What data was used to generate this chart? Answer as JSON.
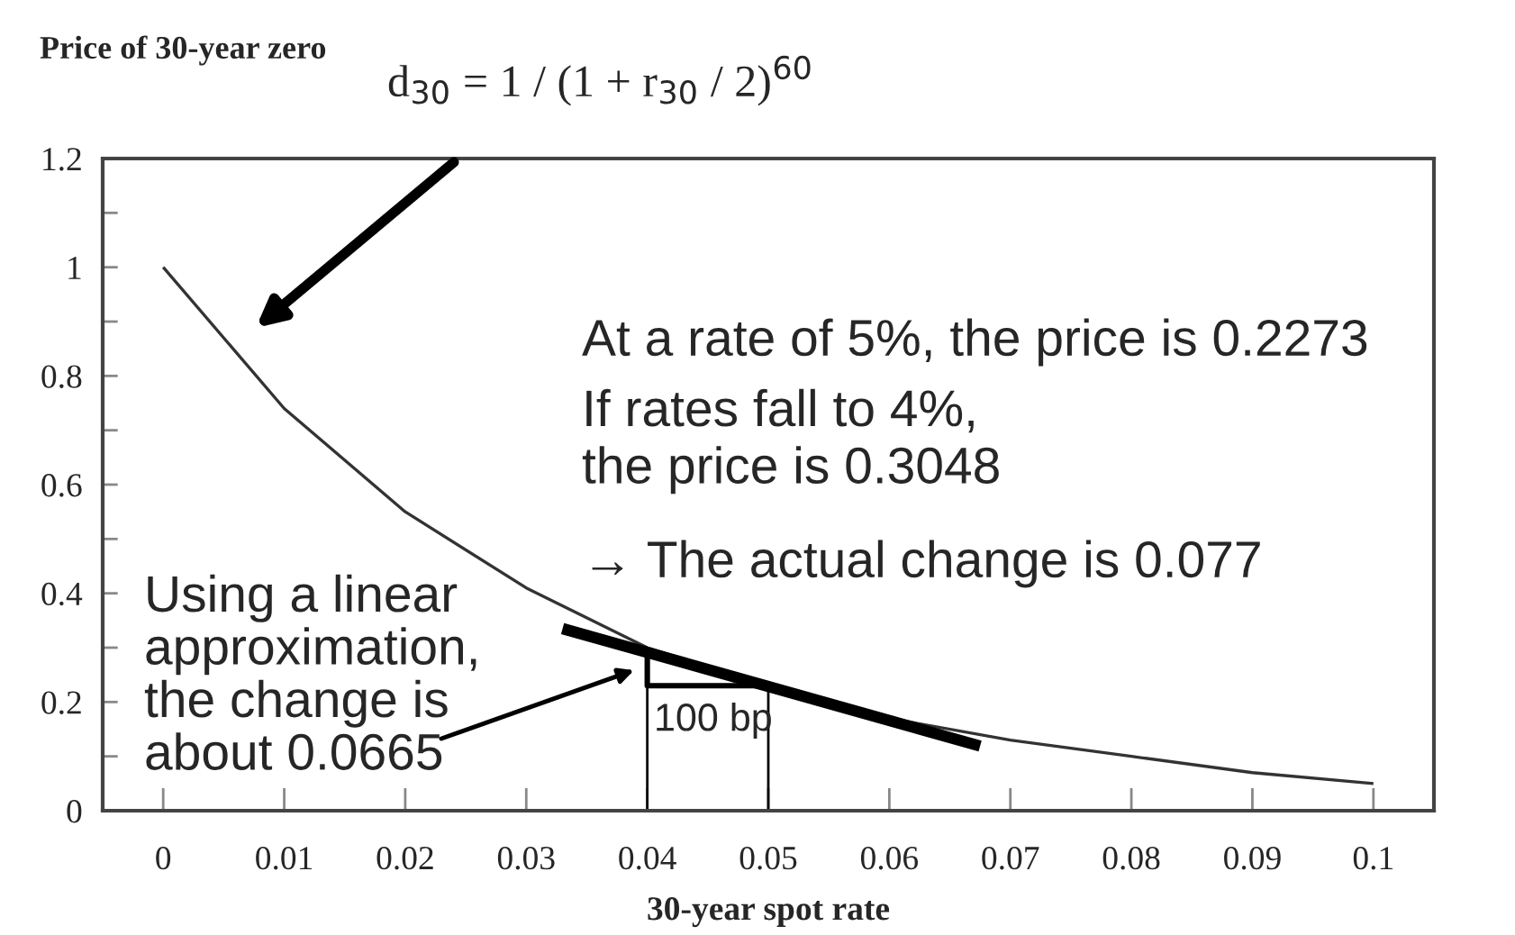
{
  "chart_data": {
    "type": "line",
    "xlabel": "30-year spot rate",
    "ylabel": "Price of 30-year zero",
    "series": [
      {
        "color": "#333333",
        "x": [
          0,
          0.01,
          0.02,
          0.03,
          0.04,
          0.05,
          0.06,
          0.07,
          0.08,
          0.09,
          0.1
        ],
        "values": [
          1,
          0.74,
          0.55,
          0.41,
          0.3,
          0.23,
          0.17,
          0.13,
          0.1,
          0.07,
          0.05
        ]
      },
      {
        "color": "#000000",
        "x": [
          0.033,
          0.0675
        ],
        "values": [
          0.335,
          0.119
        ]
      },
      {
        "color": "#000000",
        "x": [
          0.04,
          0.04,
          0.05
        ],
        "values": [
          0.29,
          0.23,
          0.23
        ]
      },
      {
        "color": "#000000",
        "x": [
          0.04,
          0.04
        ],
        "values": [
          0,
          0.23
        ]
      },
      {
        "color": "#000000",
        "x": [
          0.05,
          0.05
        ],
        "values": [
          0,
          0.23
        ]
      }
    ],
    "xlim": [
      -0.005,
      0.105
    ],
    "ylim": [
      0,
      1.2
    ],
    "xticks": [
      0,
      0.01,
      0.02,
      0.03,
      0.04,
      0.05,
      0.06,
      0.07,
      0.08,
      0.09,
      0.1
    ],
    "yticks": [
      0,
      {
        "value": 0.1,
        "label": null
      },
      0.2,
      {
        "value": 0.3,
        "label": null
      },
      0.4,
      {
        "value": 0.5,
        "label": null
      },
      0.6,
      {
        "value": 0.7,
        "label": null
      },
      0.8,
      {
        "value": 0.9,
        "label": null
      },
      1,
      {
        "value": 1.1,
        "label": null
      },
      1.2
    ],
    "grid": false,
    "legend": false,
    "annotations": [
      "d$_{30}$ = 1 / (1 + r$_{30}$ / 2)$^{60}$",
      "At a rate of 5%, the price is 0.2273",
      "If rates fall to 4%,\nthe price is 0.3048",
      "→ The actual change is 0.077",
      "Using a linear\napproximation,\nthe change is\nabout 0.0665",
      "100 bp"
    ]
  }
}
